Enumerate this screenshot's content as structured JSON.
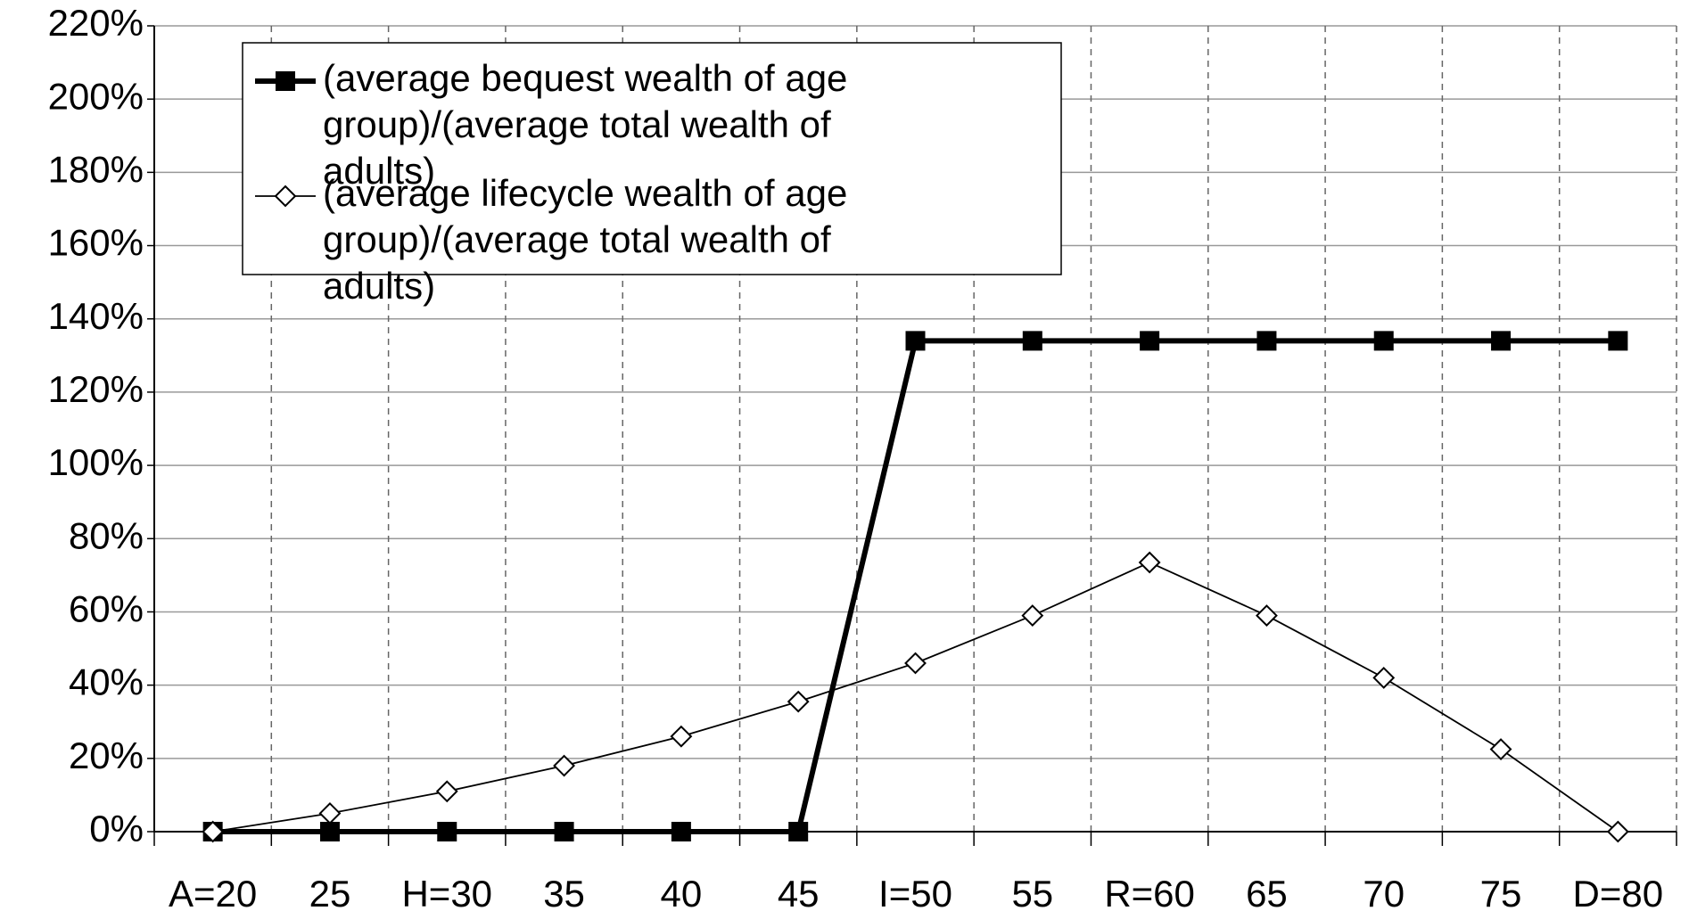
{
  "chart_data": {
    "type": "line",
    "categories": [
      "A=20",
      "25",
      "H=30",
      "35",
      "40",
      "45",
      "I=50",
      "55",
      "R=60",
      "65",
      "70",
      "75",
      "D=80"
    ],
    "series": [
      {
        "name": "(average bequest wealth of age group)/(average total wealth of adults)",
        "color": "#000000",
        "marker": "square",
        "values": [
          0,
          0,
          0,
          0,
          0,
          0,
          134,
          134,
          134,
          134,
          134,
          134,
          134
        ]
      },
      {
        "name": "(average lifecycle wealth of age group)/(average total wealth of adults)",
        "color": "#000000",
        "marker": "diamond",
        "values": [
          0,
          5,
          11,
          18,
          26,
          35.5,
          46,
          59,
          73.5,
          59,
          42,
          22.5,
          0
        ]
      }
    ],
    "ylim": [
      0,
      220
    ],
    "yticks": [
      {
        "value": 0,
        "label": "0%"
      },
      {
        "value": 20,
        "label": "20%"
      },
      {
        "value": 40,
        "label": "40%"
      },
      {
        "value": 60,
        "label": "60%"
      },
      {
        "value": 80,
        "label": "80%"
      },
      {
        "value": 100,
        "label": "100%"
      },
      {
        "value": 120,
        "label": "120%"
      },
      {
        "value": 140,
        "label": "140%"
      },
      {
        "value": 160,
        "label": "160%"
      },
      {
        "value": 180,
        "label": "180%"
      },
      {
        "value": 200,
        "label": "200%"
      },
      {
        "value": 220,
        "label": "220%"
      }
    ],
    "grid": true,
    "legend": "upper left"
  }
}
